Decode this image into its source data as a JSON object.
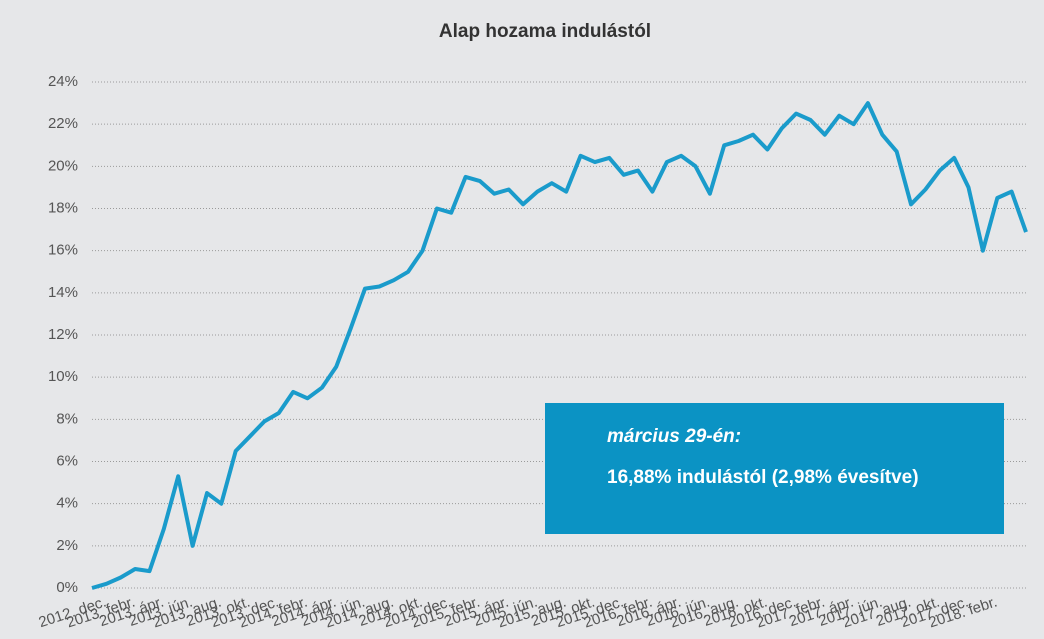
{
  "chart_data": {
    "type": "line",
    "title": "Alap hozama indulástól",
    "categories": [
      "2012. dec.",
      null,
      "2013. febr.",
      null,
      "2013. ápr.",
      null,
      "2013. jún.",
      null,
      "2013. aug.",
      null,
      "2013. okt.",
      null,
      "2013. dec.",
      null,
      "2014. febr.",
      null,
      "2014. ápr.",
      null,
      "2014. jún.",
      null,
      "2014. aug.",
      null,
      "2014. okt.",
      null,
      "2014. dec.",
      null,
      "2015. febr.",
      null,
      "2015. ápr.",
      null,
      "2015. jún.",
      null,
      "2015. aug.",
      null,
      "2015. okt.",
      null,
      "2015. dec.",
      null,
      "2016. febr.",
      null,
      "2016. ápr.",
      null,
      "2016. jún.",
      null,
      "2016. aug.",
      null,
      "2016. okt.",
      null,
      "2016. dec.",
      null,
      "2017. febr.",
      null,
      "2017. ápr.",
      null,
      "2017. jún.",
      null,
      "2017. aug.",
      null,
      "2017. okt.",
      null,
      "2017. dec.",
      null,
      "2018. febr.",
      null,
      null,
      null
    ],
    "series": [
      {
        "name": "Alap hozama",
        "color": "#1a9bcb",
        "values": [
          0,
          0.2,
          0.5,
          0.9,
          0.8,
          2.8,
          5.3,
          2.0,
          4.5,
          4.0,
          6.5,
          7.2,
          7.9,
          8.3,
          9.3,
          9.0,
          9.5,
          10.5,
          12.3,
          14.2,
          14.3,
          14.6,
          15.0,
          16.0,
          18.0,
          17.8,
          19.5,
          19.3,
          18.7,
          18.9,
          18.2,
          18.8,
          19.2,
          18.8,
          20.5,
          20.2,
          20.4,
          19.6,
          19.8,
          18.8,
          20.2,
          20.5,
          20.0,
          18.7,
          21.0,
          21.2,
          21.5,
          20.8,
          21.8,
          22.5,
          22.2,
          21.5,
          22.4,
          22.0,
          23.0,
          21.5,
          20.7,
          18.2,
          18.9,
          19.8,
          20.4,
          19.0,
          16.0,
          18.5,
          18.8,
          16.88
        ]
      }
    ],
    "ylim": [
      0,
      24
    ],
    "yticks": [
      {
        "value": 0,
        "label": "0%"
      },
      {
        "value": 2,
        "label": "2%"
      },
      {
        "value": 4,
        "label": "4%"
      },
      {
        "value": 6,
        "label": "6%"
      },
      {
        "value": 8,
        "label": "8%"
      },
      {
        "value": 10,
        "label": "10%"
      },
      {
        "value": 12,
        "label": "12%"
      },
      {
        "value": 14,
        "label": "14%"
      },
      {
        "value": 16,
        "label": "16%"
      },
      {
        "value": 18,
        "label": "18%"
      },
      {
        "value": 20,
        "label": "20%"
      },
      {
        "value": 22,
        "label": "22%"
      },
      {
        "value": 24,
        "label": "24%"
      }
    ],
    "grid": true,
    "annotations": [
      "március 29-én:",
      "16,88% indulástól  (2,98% évesítve)"
    ],
    "annotation_color": "#0b93c4"
  }
}
